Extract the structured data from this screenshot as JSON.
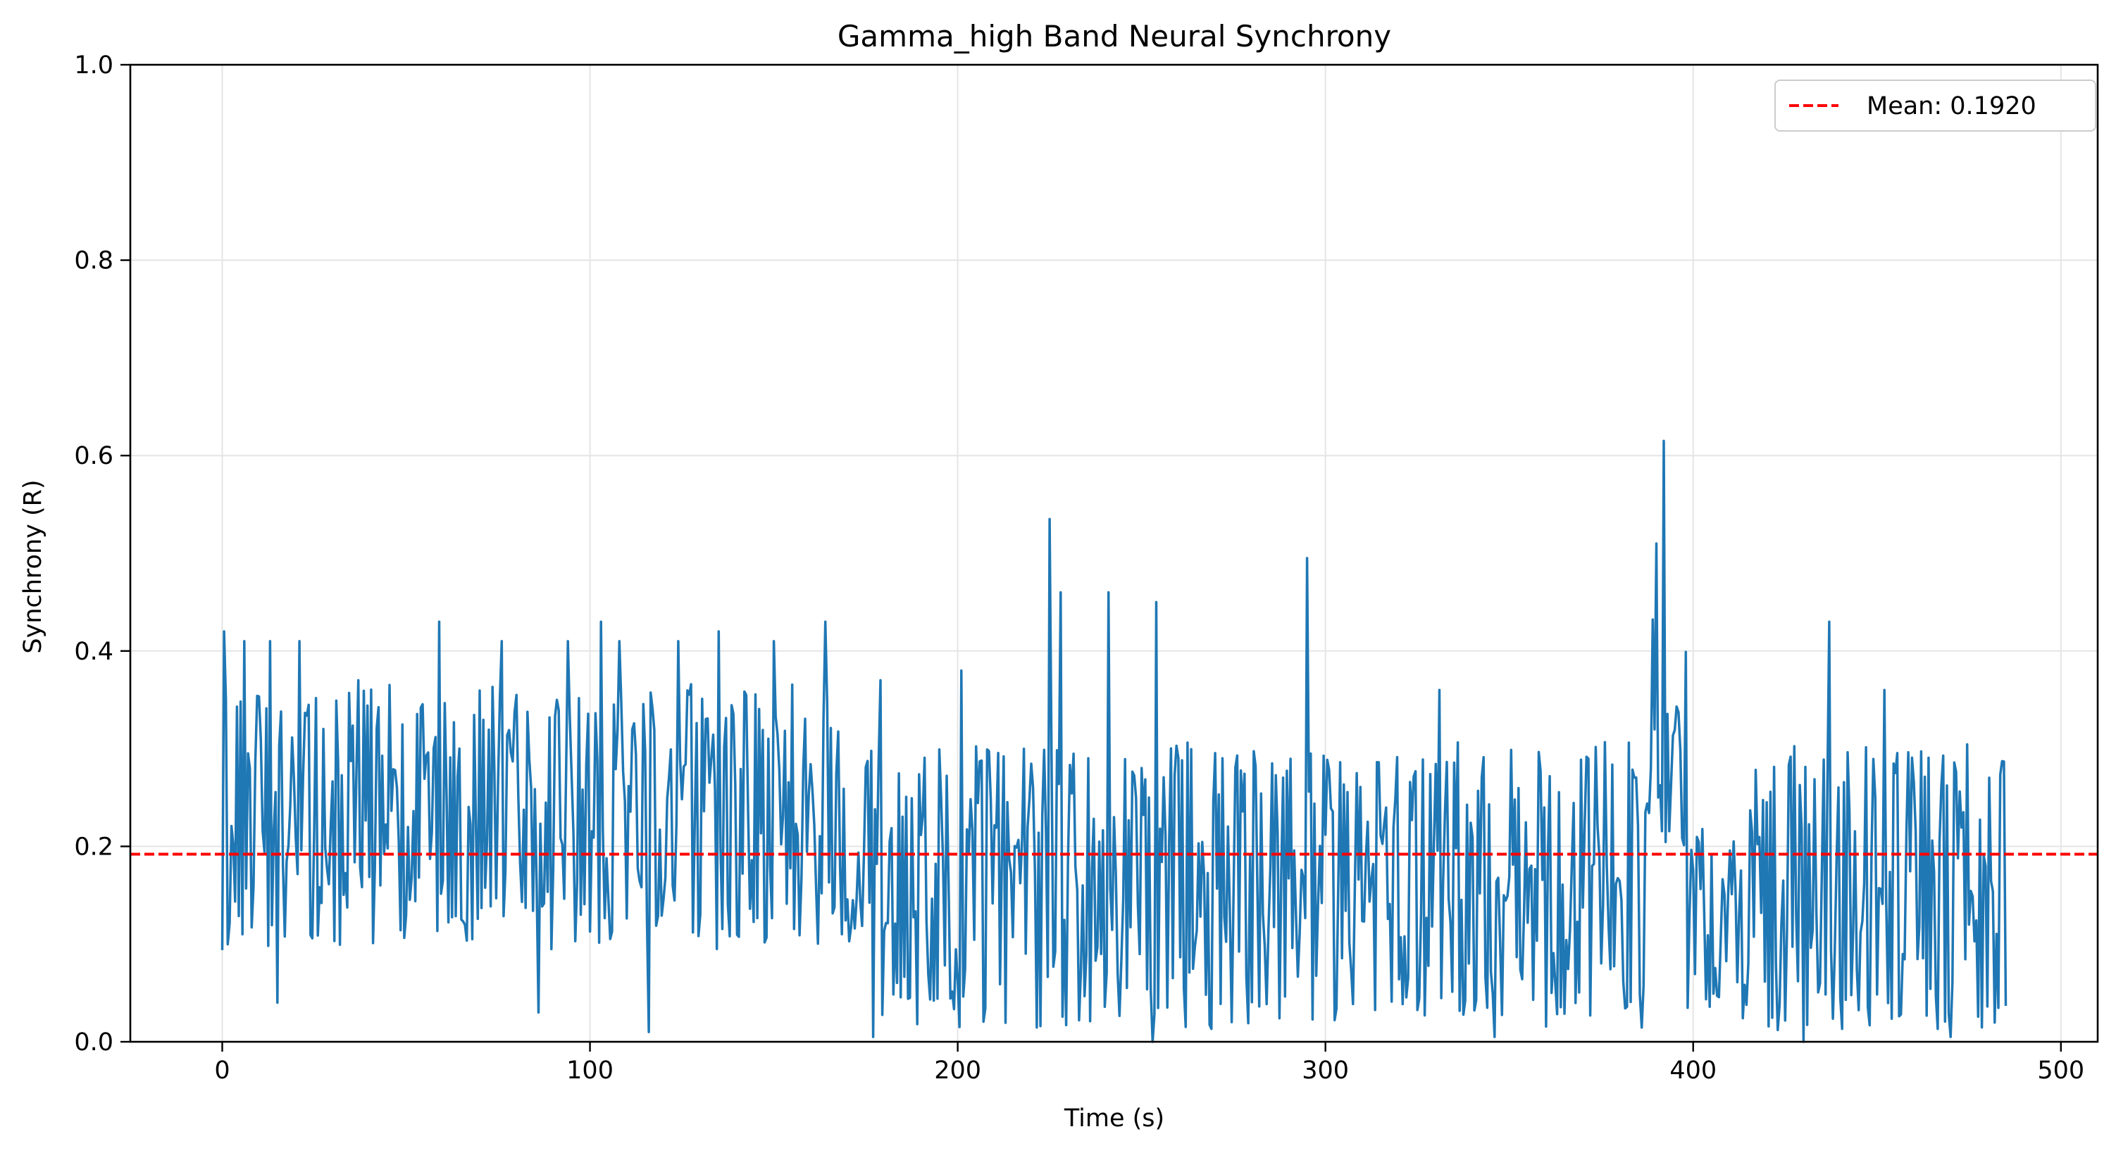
{
  "chart_data": {
    "type": "line",
    "title": "Gamma_high Band Neural Synchrony",
    "xlabel": "Time (s)",
    "ylabel": "Synchrony (R)",
    "xlim": [
      -25,
      510
    ],
    "ylim": [
      0.0,
      1.0
    ],
    "x_ticks": [
      0,
      100,
      200,
      300,
      400,
      500
    ],
    "x_tick_labels": [
      "0",
      "100",
      "200",
      "300",
      "400",
      "500"
    ],
    "y_ticks": [
      0.0,
      0.2,
      0.4,
      0.6,
      0.8,
      1.0
    ],
    "y_tick_labels": [
      "0.0",
      "0.2",
      "0.4",
      "0.6",
      "0.8",
      "1.0"
    ],
    "grid": true,
    "legend_position": "top-right",
    "series": [
      {
        "color": "#1f77b4",
        "sampling_interval_s": 0.5,
        "envelope_segments": [
          {
            "x_start": 0,
            "x_end": 175,
            "min": 0.1,
            "max": 0.36,
            "mean": 0.23
          },
          {
            "x_start": 175,
            "x_end": 388,
            "min": 0.02,
            "max": 0.3,
            "mean": 0.16
          },
          {
            "x_start": 388,
            "x_end": 398,
            "min": 0.2,
            "max": 0.45,
            "mean": 0.3
          },
          {
            "x_start": 398,
            "x_end": 415,
            "min": 0.02,
            "max": 0.22,
            "mean": 0.13
          },
          {
            "x_start": 415,
            "x_end": 485,
            "min": 0.01,
            "max": 0.3,
            "mean": 0.16
          }
        ],
        "peaks": [
          {
            "x": 0.5,
            "y": 0.42
          },
          {
            "x": 6,
            "y": 0.41
          },
          {
            "x": 13,
            "y": 0.41
          },
          {
            "x": 21,
            "y": 0.41
          },
          {
            "x": 37,
            "y": 0.37
          },
          {
            "x": 59,
            "y": 0.43
          },
          {
            "x": 76,
            "y": 0.41
          },
          {
            "x": 94,
            "y": 0.41
          },
          {
            "x": 103,
            "y": 0.43
          },
          {
            "x": 108,
            "y": 0.41
          },
          {
            "x": 124,
            "y": 0.41
          },
          {
            "x": 135,
            "y": 0.42
          },
          {
            "x": 150,
            "y": 0.41
          },
          {
            "x": 164,
            "y": 0.43
          },
          {
            "x": 179,
            "y": 0.37
          },
          {
            "x": 201,
            "y": 0.38
          },
          {
            "x": 225,
            "y": 0.535
          },
          {
            "x": 228,
            "y": 0.46
          },
          {
            "x": 241,
            "y": 0.46
          },
          {
            "x": 254,
            "y": 0.45
          },
          {
            "x": 295,
            "y": 0.495
          },
          {
            "x": 331,
            "y": 0.36
          },
          {
            "x": 392,
            "y": 0.615
          },
          {
            "x": 390,
            "y": 0.51
          },
          {
            "x": 437,
            "y": 0.43
          },
          {
            "x": 452,
            "y": 0.36
          }
        ],
        "dips": [
          {
            "x": 15,
            "y": 0.04
          },
          {
            "x": 86,
            "y": 0.03
          },
          {
            "x": 116,
            "y": 0.01
          },
          {
            "x": 177,
            "y": 0.005
          },
          {
            "x": 253,
            "y": 0.0
          },
          {
            "x": 346,
            "y": 0.005
          },
          {
            "x": 430,
            "y": 0.0
          },
          {
            "x": 470,
            "y": 0.005
          }
        ]
      }
    ],
    "reference_lines": [
      {
        "orientation": "horizontal",
        "y": 0.192,
        "label": "Mean: 0.1920",
        "color": "#ff0000",
        "style": "dashed"
      }
    ]
  }
}
